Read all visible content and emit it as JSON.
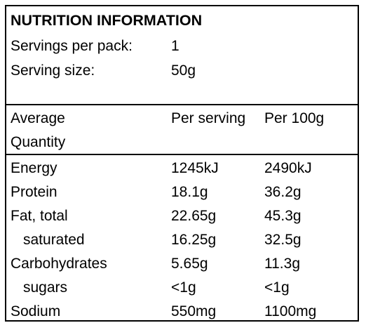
{
  "title": "NUTRITION INFORMATION",
  "meta": {
    "servings_label": "Servings per pack:",
    "servings_value": "1",
    "size_label": "Serving size:",
    "size_value": "50g"
  },
  "headers": {
    "col1_line1": "Average",
    "col1_line2": "Quantity",
    "col2": "Per serving",
    "col3": "Per 100g"
  },
  "rows": [
    {
      "label": "Energy",
      "per_serving": "1245kJ",
      "per_100g": "2490kJ"
    },
    {
      "label": "Protein",
      "per_serving": "18.1g",
      "per_100g": "36.2g"
    },
    {
      "label": "Fat, total",
      "per_serving": "22.65g",
      "per_100g": "45.3g"
    },
    {
      "label": "saturated",
      "per_serving": "16.25g",
      "per_100g": "32.5g"
    },
    {
      "label": "Carbohydrates",
      "per_serving": "5.65g",
      "per_100g": "11.3g"
    },
    {
      "label": "sugars",
      "per_serving": "<1g",
      "per_100g": "<1g"
    },
    {
      "label": "Sodium",
      "per_serving": "550mg",
      "per_100g": "1100mg"
    }
  ]
}
